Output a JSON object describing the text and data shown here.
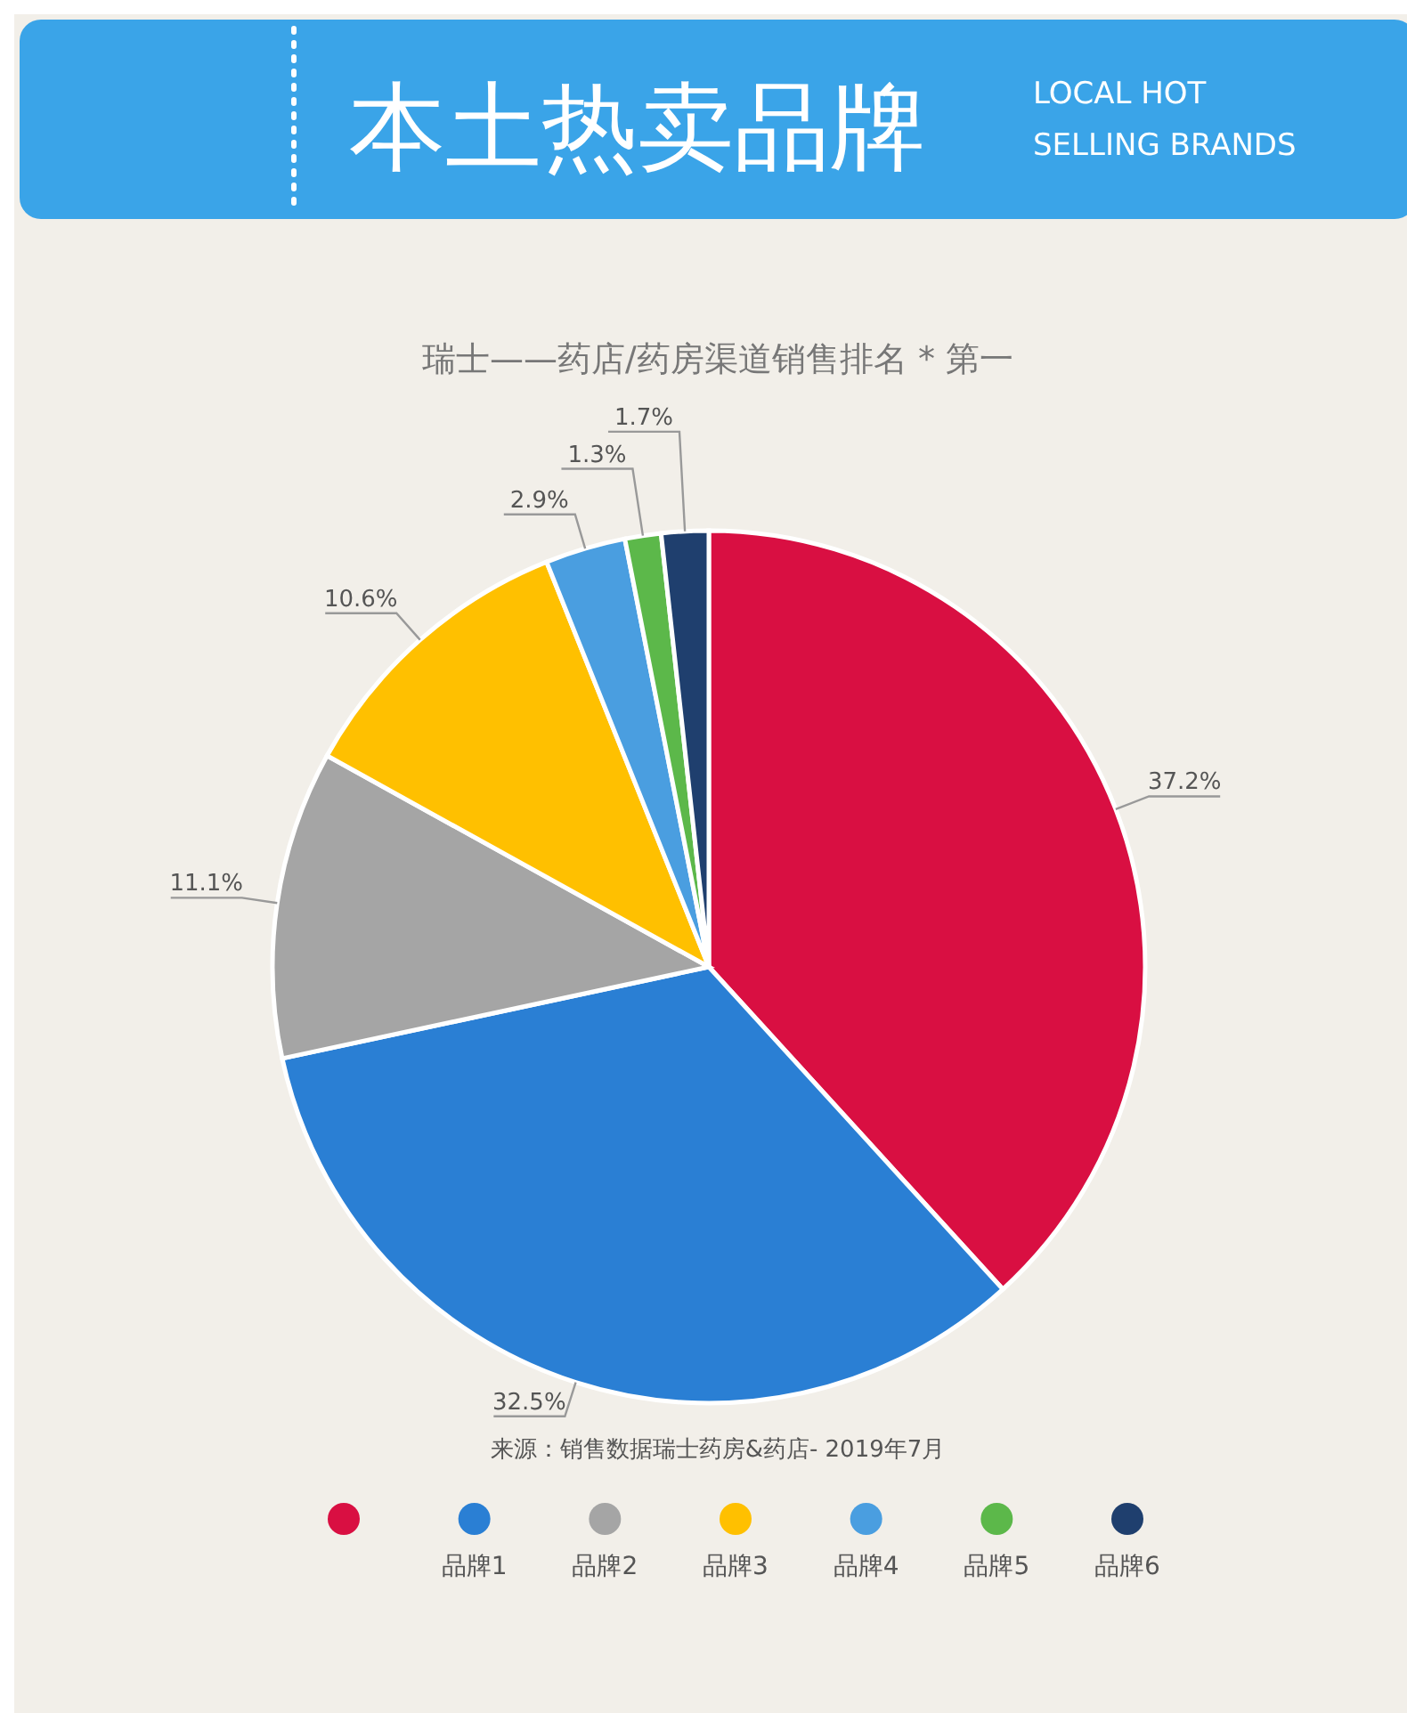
{
  "chart_data": {
    "type": "pie",
    "title": "瑞士——药店/药房渠道销售排名 * 第一",
    "categories": [
      null,
      "品牌1",
      "品牌2",
      "品牌3",
      "品牌4",
      "品牌5",
      "品牌6"
    ],
    "values": [
      37.2,
      32.5,
      11.1,
      10.6,
      2.9,
      1.3,
      1.7
    ],
    "value_labels": [
      "37.2%",
      "32.5%",
      "11.1%",
      "10.6%",
      "2.9%",
      "1.3%",
      "1.7%"
    ],
    "colors": [
      "#d90f42",
      "#2a7fd4",
      "#a5a5a5",
      "#ffc000",
      "#4a9ee0",
      "#5cb84a",
      "#1f3f6e"
    ],
    "legend": "bottom",
    "annotations": [
      "本土热卖品牌",
      "LOCAL HOT SELLING BRANDS",
      "来源：销售数据瑞士药房&药店- 2019年7月"
    ]
  }
}
